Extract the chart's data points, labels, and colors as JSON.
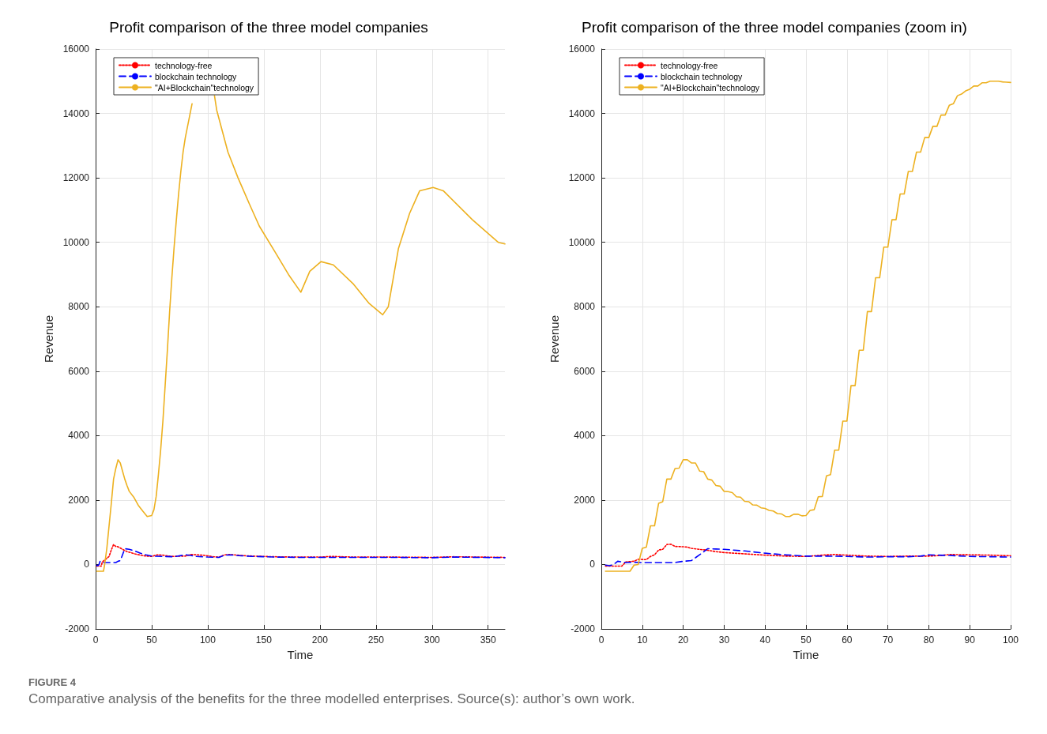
{
  "chart_data": [
    {
      "type": "line",
      "title": "Profit comparison of the three model companies",
      "xlabel": "Time",
      "ylabel": "Revenue",
      "xlim": [
        0,
        365
      ],
      "xticks": [
        0,
        50,
        100,
        150,
        200,
        250,
        300,
        350
      ],
      "ylim": [
        -2000,
        16000
      ],
      "yticks": [
        -2000,
        0,
        2000,
        4000,
        6000,
        8000,
        10000,
        12000,
        14000,
        16000
      ],
      "grid": true,
      "legend": "top left",
      "marker": "none",
      "annotations": [
        "FIGURE 4",
        "Comparative analysis of the benefits for the three modelled enterprises. Source(s): author’s own work."
      ],
      "series": [
        {
          "name": "technology-free",
          "color": "#ff0000",
          "line_style": "dotted",
          "x": [
            1,
            5,
            6,
            9,
            12,
            14,
            16,
            18,
            20,
            24,
            28,
            35,
            40,
            45,
            50,
            55,
            60,
            65,
            70,
            75,
            80,
            85,
            90,
            95,
            100,
            105,
            110,
            115,
            120,
            130,
            140,
            160,
            180,
            200,
            210,
            230,
            260,
            300,
            320,
            365
          ],
          "values": [
            -50,
            -50,
            80,
            160,
            250,
            450,
            620,
            560,
            550,
            470,
            400,
            330,
            290,
            260,
            250,
            300,
            290,
            260,
            250,
            260,
            260,
            310,
            300,
            290,
            270,
            240,
            230,
            300,
            310,
            280,
            260,
            240,
            230,
            230,
            250,
            230,
            230,
            220,
            240,
            220
          ]
        },
        {
          "name": "blockchain technology",
          "color": "#0000ff",
          "line_style": "dashed",
          "x": [
            1,
            2,
            3,
            4,
            6,
            10,
            18,
            20,
            22,
            24,
            26,
            30,
            35,
            40,
            45,
            50,
            60,
            70,
            80,
            85,
            90,
            100,
            110,
            115,
            120,
            130,
            140,
            160,
            180,
            200,
            230,
            260,
            300,
            320,
            365
          ],
          "values": [
            -20,
            -40,
            0,
            100,
            60,
            60,
            60,
            100,
            120,
            300,
            490,
            470,
            420,
            350,
            300,
            260,
            250,
            240,
            300,
            280,
            250,
            230,
            220,
            290,
            300,
            270,
            250,
            230,
            220,
            220,
            220,
            220,
            210,
            230,
            210
          ]
        },
        {
          "name": "\"AI+Blockchain\"technology",
          "color": "#edb120",
          "line_style": "solid",
          "x": [
            1,
            7,
            8,
            10,
            12,
            14,
            16,
            18,
            20,
            22,
            24,
            26,
            28,
            30,
            34,
            38,
            42,
            46,
            50,
            52,
            54,
            56,
            58,
            60,
            62,
            64,
            66,
            68,
            70,
            72,
            74,
            76,
            78,
            80,
            82,
            84,
            86,
            88,
            104,
            106,
            108,
            118,
            127,
            137,
            146,
            160,
            172,
            183,
            191,
            201,
            212,
            230,
            244,
            256,
            261,
            270,
            280,
            289,
            301,
            310,
            336,
            359,
            365
          ],
          "values": [
            -210,
            -210,
            -20,
            500,
            1200,
            1900,
            2650,
            2980,
            3250,
            3150,
            2900,
            2650,
            2450,
            2270,
            2090,
            1840,
            1660,
            1490,
            1520,
            1700,
            2110,
            2790,
            3550,
            4450,
            5550,
            6650,
            7850,
            8900,
            9850,
            10700,
            11500,
            12200,
            12800,
            13250,
            13600,
            13950,
            14300,
            null,
            null,
            14550,
            14100,
            12800,
            12000,
            11200,
            10500,
            9700,
            9000,
            8450,
            9100,
            9400,
            9300,
            8700,
            8100,
            7750,
            8000,
            9800,
            10900,
            11600,
            11700,
            11600,
            10700,
            10000,
            9950
          ]
        }
      ]
    },
    {
      "type": "line",
      "title": "Profit comparison of the three model companies (zoom in)",
      "xlabel": "Time",
      "ylabel": "Revenue",
      "xlim": [
        0,
        100
      ],
      "xticks": [
        0,
        10,
        20,
        30,
        40,
        50,
        60,
        70,
        80,
        90,
        100
      ],
      "ylim": [
        -2000,
        16000
      ],
      "yticks": [
        -2000,
        0,
        2000,
        4000,
        6000,
        8000,
        10000,
        12000,
        14000,
        16000
      ],
      "grid": true,
      "legend": "top left",
      "marker": "none",
      "series": [
        {
          "name": "technology-free",
          "color": "#ff0000",
          "line_style": "dotted",
          "x": [
            1,
            5,
            6,
            8,
            9,
            11,
            12,
            13,
            14,
            15,
            16,
            17,
            18,
            20,
            21,
            22,
            24,
            26,
            28,
            30,
            35,
            40,
            45,
            50,
            55,
            57,
            60,
            65,
            70,
            75,
            80,
            83,
            85,
            90,
            95,
            100
          ],
          "values": [
            -50,
            -50,
            80,
            100,
            160,
            150,
            250,
            300,
            450,
            470,
            620,
            630,
            560,
            550,
            540,
            500,
            470,
            440,
            400,
            370,
            330,
            290,
            260,
            250,
            300,
            310,
            290,
            260,
            250,
            260,
            260,
            280,
            310,
            300,
            290,
            270
          ]
        },
        {
          "name": "blockchain technology",
          "color": "#0000ff",
          "line_style": "dashed",
          "x": [
            1,
            2,
            3,
            4,
            6,
            8,
            10,
            15,
            18,
            20,
            22,
            24,
            26,
            28,
            30,
            35,
            40,
            45,
            50,
            55,
            60,
            65,
            70,
            75,
            78,
            80,
            85,
            90,
            95,
            100
          ],
          "values": [
            -20,
            -40,
            0,
            100,
            60,
            70,
            60,
            60,
            60,
            100,
            120,
            300,
            490,
            480,
            470,
            420,
            350,
            300,
            260,
            260,
            250,
            230,
            240,
            240,
            260,
            300,
            280,
            250,
            240,
            230
          ]
        },
        {
          "name": "\"AI+Blockchain\"technology",
          "color": "#edb120",
          "line_style": "solid",
          "x": [
            1,
            7,
            8,
            9,
            10,
            11,
            12,
            13,
            14,
            15,
            16,
            17,
            18,
            19,
            20,
            21,
            22,
            23,
            24,
            25,
            26,
            27,
            28,
            29,
            30,
            31,
            32,
            33,
            34,
            35,
            36,
            37,
            38,
            39,
            40,
            41,
            42,
            43,
            44,
            45,
            46,
            47,
            48,
            49,
            50,
            51,
            52,
            53,
            54,
            55,
            56,
            57,
            58,
            59,
            60,
            61,
            62,
            63,
            64,
            65,
            66,
            67,
            68,
            69,
            70,
            71,
            72,
            73,
            74,
            75,
            76,
            77,
            78,
            79,
            80,
            81,
            82,
            83,
            84,
            85,
            86,
            87,
            88,
            89,
            90,
            91,
            92,
            93,
            94,
            95,
            96,
            97,
            98,
            99,
            100
          ],
          "values": [
            -210,
            -210,
            -20,
            0,
            500,
            540,
            1200,
            1200,
            1900,
            1950,
            2650,
            2650,
            2980,
            2990,
            3250,
            3250,
            3150,
            3150,
            2900,
            2880,
            2650,
            2620,
            2450,
            2430,
            2270,
            2260,
            2230,
            2100,
            2090,
            1960,
            1950,
            1850,
            1840,
            1760,
            1740,
            1680,
            1660,
            1580,
            1570,
            1490,
            1490,
            1560,
            1560,
            1510,
            1520,
            1680,
            1700,
            2100,
            2110,
            2750,
            2790,
            3550,
            3550,
            4450,
            4450,
            5550,
            5550,
            6650,
            6650,
            7850,
            7850,
            8900,
            8900,
            9850,
            9850,
            10700,
            10700,
            11500,
            11500,
            12200,
            12200,
            12800,
            12800,
            13250,
            13250,
            13600,
            13600,
            13950,
            13950,
            14250,
            14300,
            14550,
            14600,
            14700,
            14750,
            14850,
            14850,
            14950,
            14950,
            15000,
            15000,
            15000,
            14980,
            14970,
            14960
          ]
        }
      ]
    }
  ]
}
